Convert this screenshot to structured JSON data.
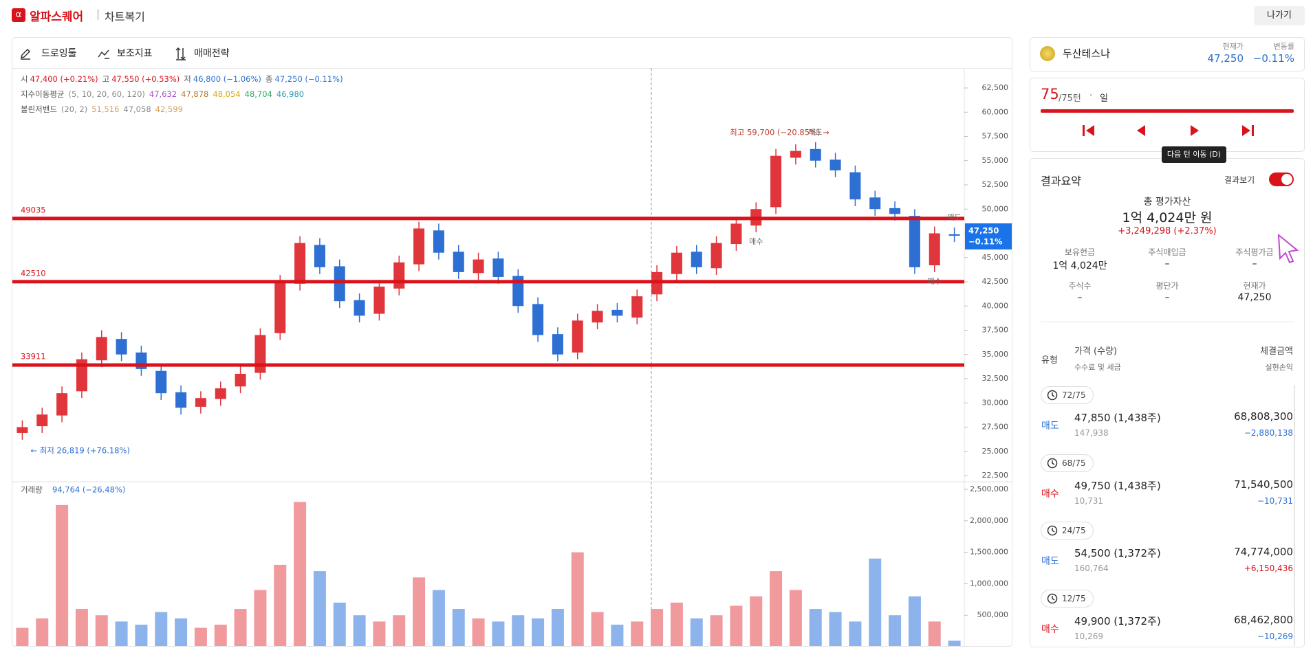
{
  "header": {
    "logo": "α",
    "brand": "알파스퀘어",
    "divider": "|",
    "section": "차트복기",
    "exit": "나가기"
  },
  "toolbar": [
    "드로잉툴",
    "보조지표",
    "매매전략"
  ],
  "info": {
    "ohlc": [
      {
        "label": "시",
        "value": "47,400 (+0.21%)",
        "color": "#d9121b"
      },
      {
        "label": "고",
        "value": "47,550 (+0.53%)",
        "color": "#d9121b"
      },
      {
        "label": "저",
        "value": "46,800 (−1.06%)",
        "color": "#2d6fd2"
      },
      {
        "label": "종",
        "value": "47,250 (−0.11%)",
        "color": "#2d6fd2"
      }
    ],
    "ema": {
      "label": "지수이동평균",
      "params": "(5, 10, 20, 60, 120)",
      "values": [
        "47,632",
        "47,878",
        "48,054",
        "48,704",
        "46,980"
      ],
      "colors": [
        "#a64dc8",
        "#b0792a",
        "#d4a80a",
        "#2fa86a",
        "#2a9bb5"
      ]
    },
    "bollinger": {
      "label": "볼린저밴드",
      "params": "(20, 2)",
      "values": [
        "51,516",
        "47,058",
        "42,599"
      ],
      "colors": [
        "#d4a060",
        "#888888",
        "#d4a060"
      ]
    }
  },
  "chart": {
    "type": "candlestick",
    "open": [
      26900,
      27600,
      28700,
      31200,
      34400,
      36600,
      35200,
      33300,
      31100,
      29600,
      30400,
      31700,
      33100,
      37200,
      42300,
      46300,
      44100,
      40600,
      39200,
      41800,
      44300,
      47800,
      45600,
      43400,
      44900,
      43100,
      40200,
      37100,
      35200,
      38300,
      39600,
      38800,
      41200,
      43300,
      45600,
      43900,
      46400,
      48300,
      50200,
      55300,
      56200,
      55100,
      53800,
      51200,
      50100,
      49300,
      44200,
      47400
    ],
    "high": [
      28200,
      29500,
      31700,
      35200,
      37500,
      37300,
      35900,
      34000,
      31800,
      31200,
      32200,
      33800,
      37700,
      43200,
      47200,
      47000,
      44800,
      41300,
      42700,
      45200,
      48700,
      48500,
      46300,
      45500,
      45600,
      43800,
      40900,
      37800,
      39200,
      40200,
      40300,
      41700,
      44200,
      46200,
      46300,
      47200,
      49200,
      50700,
      56200,
      56700,
      56900,
      55800,
      54500,
      51900,
      50800,
      50000,
      48200,
      48100
    ],
    "low": [
      26200,
      26900,
      28000,
      30500,
      33700,
      34300,
      32800,
      30300,
      28800,
      28900,
      29700,
      31000,
      32400,
      36500,
      41600,
      43300,
      39800,
      38300,
      38500,
      41100,
      43600,
      44800,
      42800,
      42700,
      42300,
      39300,
      36300,
      34300,
      34500,
      37600,
      38300,
      38100,
      40500,
      42600,
      43300,
      43200,
      45700,
      47600,
      49500,
      54600,
      54300,
      53300,
      50300,
      49300,
      48800,
      43300,
      43500,
      46600
    ],
    "close": [
      27500,
      28800,
      31000,
      34500,
      36800,
      35000,
      33500,
      31000,
      29500,
      30500,
      31500,
      33000,
      37000,
      42500,
      46500,
      44000,
      40500,
      39000,
      42000,
      44500,
      48000,
      45500,
      43500,
      44800,
      43000,
      40000,
      37000,
      35000,
      38500,
      39500,
      39000,
      41000,
      43500,
      45500,
      44000,
      46500,
      48500,
      50000,
      55500,
      56000,
      55000,
      54000,
      51000,
      50000,
      49500,
      44000,
      47500,
      47250
    ],
    "up_color": "#e0353b",
    "down_color": "#2d6fd2",
    "ylim": [
      21862,
      64557
    ],
    "yticks": [
      {
        "value": 22500,
        "label": "22,500"
      },
      {
        "value": 25000,
        "label": "25,000"
      },
      {
        "value": 27500,
        "label": "27,500"
      },
      {
        "value": 30000,
        "label": "30,000"
      },
      {
        "value": 32500,
        "label": "32,500"
      },
      {
        "value": 35000,
        "label": "35,000"
      },
      {
        "value": 37500,
        "label": "37,500"
      },
      {
        "value": 40000,
        "label": "40,000"
      },
      {
        "value": 42500,
        "label": "42,500"
      },
      {
        "value": 45000,
        "label": "45,000"
      },
      {
        "value": 47500,
        "label": "47,500"
      },
      {
        "value": 50000,
        "label": "50,000"
      },
      {
        "value": 52500,
        "label": "52,500"
      },
      {
        "value": 55000,
        "label": "55,000"
      },
      {
        "value": 57500,
        "label": "57,500"
      },
      {
        "value": 60000,
        "label": "60,000"
      },
      {
        "value": 62500,
        "label": "62,500"
      }
    ],
    "levels": [
      49035,
      42510,
      33911
    ],
    "level_color": "#d9121b",
    "high_note": "최고 59,700 (−20.85%) →",
    "low_note": "← 최저 26,819 (+76.18%)",
    "markers": [
      "매수",
      "매도",
      "매도",
      "매수"
    ],
    "price_tag": "47,250",
    "change_tag": "−0.11%",
    "volume": {
      "label": "거래량",
      "summary": "94,764 (−26.48%)",
      "values": [
        300000,
        450000,
        2250000,
        600000,
        500000,
        400000,
        350000,
        550000,
        450000,
        300000,
        350000,
        600000,
        900000,
        1300000,
        2300000,
        1200000,
        700000,
        500000,
        400000,
        500000,
        1100000,
        900000,
        600000,
        450000,
        400000,
        500000,
        450000,
        600000,
        1500000,
        550000,
        350000,
        400000,
        600000,
        700000,
        450000,
        500000,
        650000,
        800000,
        1200000,
        900000,
        600000,
        550000,
        400000,
        1400000,
        500000,
        800000,
        400000,
        94764
      ],
      "up_color": "#f19a9d",
      "down_color": "#8db3ec",
      "ylim": [
        0,
        2620000
      ],
      "yticks": [
        {
          "value": 500000,
          "label": "500,000"
        },
        {
          "value": 1000000,
          "label": "1,000,000"
        },
        {
          "value": 1500000,
          "label": "1,500,000"
        },
        {
          "value": 2000000,
          "label": "2,000,000"
        },
        {
          "value": 2500000,
          "label": "2,500,000"
        }
      ]
    }
  },
  "stock": {
    "name": "두산테스나",
    "price_label": "현재가",
    "price": "47,250",
    "change_label": "변동률",
    "change": "−0.11%"
  },
  "turn": {
    "current": "75",
    "total": "/75턴",
    "separator": "·",
    "period": "일",
    "tooltip": "다음 턴 이동 (D)"
  },
  "summary": {
    "title": "결과요약",
    "toggle": "결과보기",
    "total_label": "총 평가자산",
    "total": "1억 4,024만 원",
    "profit": "+3,249,298 (+2.37%)",
    "stats": [
      {
        "label": "보유현금",
        "value": "1억 4,024만"
      },
      {
        "label": "주식매입금",
        "value": "–"
      },
      {
        "label": "주식평가금",
        "value": "–"
      },
      {
        "label": "주식수",
        "value": "–"
      },
      {
        "label": "평단가",
        "value": "–"
      },
      {
        "label": "현재가",
        "value": "47,250"
      }
    ],
    "table_header": {
      "type": "유형",
      "price": "가격 (수량)",
      "fee": "수수료 및 세금",
      "amount": "체결금액",
      "pnl": "실현손익"
    },
    "trades": [
      {
        "turn": "72/75",
        "side": "매도",
        "side_color": "#2d6fd2",
        "price": "47,850 (1,438주)",
        "fee": "147,938",
        "amount": "68,808,300",
        "pnl": "−2,880,138",
        "pnl_color": "#2d6fd2"
      },
      {
        "turn": "68/75",
        "side": "매수",
        "side_color": "#d9121b",
        "price": "49,750 (1,438주)",
        "fee": "10,731",
        "amount": "71,540,500",
        "pnl": "−10,731",
        "pnl_color": "#2d6fd2"
      },
      {
        "turn": "24/75",
        "side": "매도",
        "side_color": "#2d6fd2",
        "price": "54,500 (1,372주)",
        "fee": "160,764",
        "amount": "74,774,000",
        "pnl": "+6,150,436",
        "pnl_color": "#d9121b"
      },
      {
        "turn": "12/75",
        "side": "매수",
        "side_color": "#d9121b",
        "price": "49,900 (1,372주)",
        "fee": "10,269",
        "amount": "68,462,800",
        "pnl": "−10,269",
        "pnl_color": "#2d6fd2"
      }
    ]
  }
}
